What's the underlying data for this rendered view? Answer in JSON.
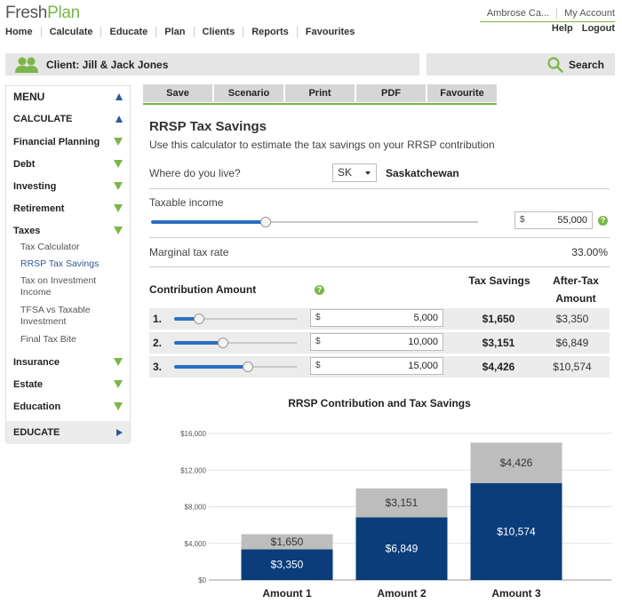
{
  "brand": {
    "fresh": "Fresh",
    "plan": "Plan"
  },
  "topnav": [
    "Home",
    "Calculate",
    "Educate",
    "Plan",
    "Clients",
    "Reports",
    "Favourites"
  ],
  "account": {
    "user": "Ambrose Ca...",
    "my_account": "My Account",
    "help": "Help",
    "logout": "Logout"
  },
  "client": {
    "label": "Client: Jill & Jack Jones"
  },
  "search": {
    "label": "Search"
  },
  "sidebar": {
    "menu": "MENU",
    "calculate": "CALCULATE",
    "items": [
      "Financial Planning",
      "Debt",
      "Investing",
      "Retirement",
      "Taxes"
    ],
    "taxes_sub": [
      "Tax Calculator",
      "RRSP Tax Savings",
      "Tax on Investment Income",
      "TFSA vs Taxable Investment",
      "Final Tax Bite"
    ],
    "items2": [
      "Insurance",
      "Estate",
      "Education"
    ],
    "educate": "EDUCATE"
  },
  "toolbar": [
    "Save",
    "Scenario",
    "Print",
    "PDF",
    "Favourite"
  ],
  "calc": {
    "title": "RRSP Tax Savings",
    "intro": "Use this calculator to estimate the tax savings on your RRSP contribution",
    "where_label": "Where do you live?",
    "province_code": "SK",
    "province_name": "Saskatchewan",
    "taxable_label": "Taxable income",
    "taxable_currency": "$",
    "taxable_value": "55,000",
    "taxable_slider": 0.35,
    "marginal_label": "Marginal tax rate",
    "marginal_value": "33.00%",
    "contribution_label": "Contribution Amount",
    "tax_savings_header": "Tax Savings",
    "after_tax_header": "After-Tax Amount",
    "rows": [
      {
        "num": "1.",
        "currency": "$",
        "amount": "5,000",
        "tax": "$1,650",
        "after": "$3,350",
        "slider": 0.2
      },
      {
        "num": "2.",
        "currency": "$",
        "amount": "10,000",
        "tax": "$3,151",
        "after": "$6,849",
        "slider": 0.4
      },
      {
        "num": "3.",
        "currency": "$",
        "amount": "15,000",
        "tax": "$4,426",
        "after": "$10,574",
        "slider": 0.6
      }
    ]
  },
  "colors": {
    "green": "#7ab648",
    "navy": "#0a3d7a",
    "gray": "#bdbdbd",
    "blue": "#2c6fbf"
  },
  "chart_data": {
    "type": "bar",
    "title": "RRSP Contribution and Tax Savings",
    "categories": [
      "Amount 1",
      "Amount 2",
      "Amount 3"
    ],
    "series": [
      {
        "values": [
          3350,
          6849,
          10574
        ],
        "labels": [
          "$3,350",
          "$6,849",
          "$10,574"
        ]
      },
      {
        "values": [
          1650,
          3151,
          4426
        ],
        "labels": [
          "$1,650",
          "$3,151",
          "$4,426"
        ]
      }
    ],
    "stacked": true,
    "ylim": [
      0,
      16000
    ],
    "yticks": [
      0,
      4000,
      8000,
      12000,
      16000
    ],
    "ytick_labels": [
      "$0",
      "$4,000",
      "$8,000",
      "$12,000",
      "$16,000"
    ]
  }
}
